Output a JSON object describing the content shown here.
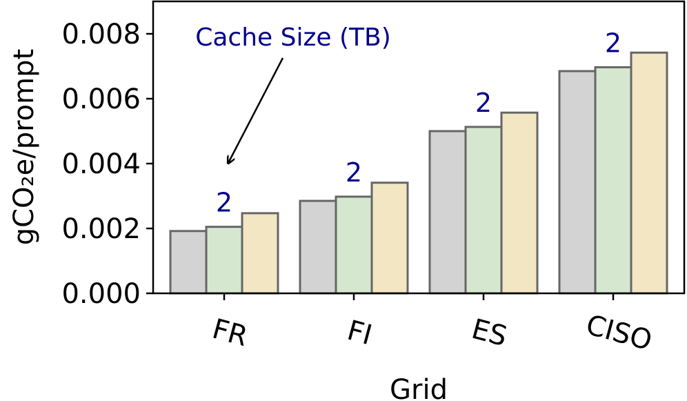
{
  "chart_data": {
    "type": "bar",
    "xlabel": "Grid",
    "ylabel": "gCO₂e/prompt",
    "ylim": [
      0,
      0.009
    ],
    "yticks": [
      "0.000",
      "0.002",
      "0.004",
      "0.006",
      "0.008"
    ],
    "ytick_values": [
      0,
      0.002,
      0.004,
      0.006,
      0.008
    ],
    "categories": [
      "FR",
      "FI",
      "ES",
      "CISO"
    ],
    "series": [
      {
        "color": "#d3d3d3",
        "values": [
          0.00192,
          0.00285,
          0.005,
          0.00685
        ]
      },
      {
        "color": "#d5e8cf",
        "values": [
          0.00205,
          0.00298,
          0.00513,
          0.00697
        ]
      },
      {
        "color": "#f2e6c3",
        "values": [
          0.00247,
          0.00341,
          0.00557,
          0.00742
        ]
      }
    ],
    "bar_labels": [
      {
        "category": "FR",
        "text": "2"
      },
      {
        "category": "FI",
        "text": "2"
      },
      {
        "category": "ES",
        "text": "2"
      },
      {
        "category": "CISO",
        "text": "2"
      }
    ],
    "annotation": {
      "text": "Cache Size (TB)"
    },
    "grid": false,
    "colors": {
      "annotation": "#00008b",
      "bar_edge": "#666666"
    }
  }
}
